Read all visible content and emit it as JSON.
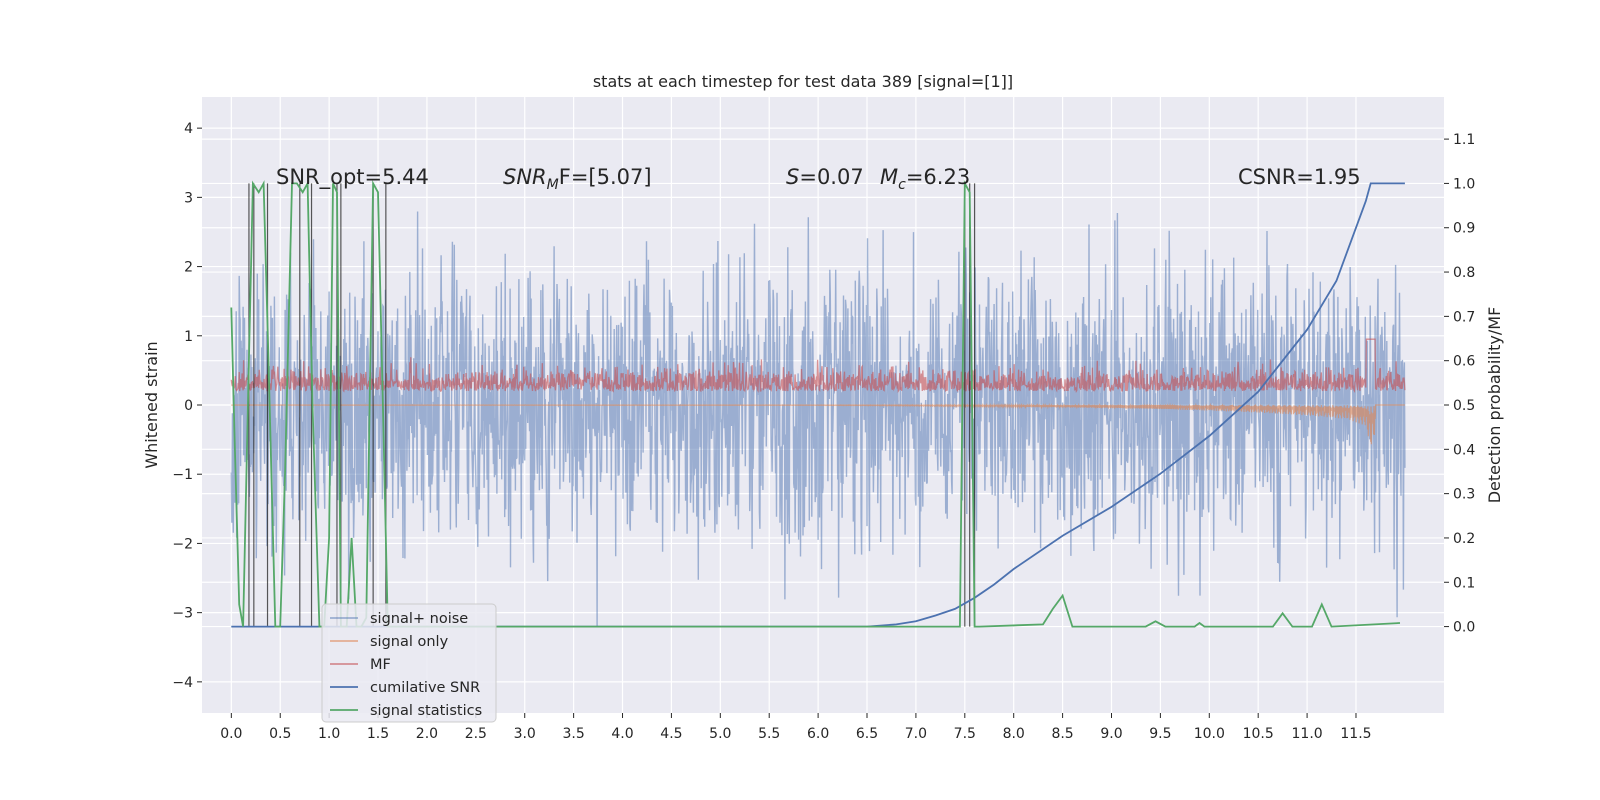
{
  "chart_data": {
    "type": "line",
    "title": "stats at each timestep for test data 389 [signal=[1]]",
    "ylabel": "Whitened strain",
    "ylabel_right": "Detection probability/MF",
    "xlim": [
      -0.3,
      12.4
    ],
    "ylim": [
      -4.45,
      4.45
    ],
    "ylim_right": [
      -0.195,
      1.195
    ],
    "xticks": [
      "0.0",
      "0.5",
      "1.0",
      "1.5",
      "2.0",
      "2.5",
      "3.0",
      "3.5",
      "4.0",
      "4.5",
      "5.0",
      "5.5",
      "6.0",
      "6.5",
      "7.0",
      "7.5",
      "8.0",
      "8.5",
      "9.0",
      "9.5",
      "10.0",
      "10.5",
      "11.0",
      "11.5"
    ],
    "yticks_left": [
      "−4",
      "−3",
      "−2",
      "−1",
      "0",
      "1",
      "2",
      "3",
      "4"
    ],
    "yticks_right": [
      "0.0",
      "0.1",
      "0.2",
      "0.3",
      "0.4",
      "0.5",
      "0.6",
      "0.7",
      "0.8",
      "0.9",
      "1.0",
      "1.1"
    ],
    "grid": true,
    "legend_position": "lower-left",
    "annotations": {
      "snr_opt": "SNR_opt=5.44",
      "snr_mf_label": "SNR",
      "snr_mf_sub": "M",
      "snr_mf_rest": "F=[5.07]",
      "s_label": "S",
      "s_rest": "=0.07",
      "mc_label": "M",
      "mc_sub": "c",
      "mc_rest": "=6.23",
      "csnr": "CSNR=1.95"
    },
    "series": [
      {
        "name": "signal+ noise",
        "color": "#4c72b0",
        "opacity": 0.5,
        "band_rms": 1.0,
        "x_range": [
          0,
          12.0
        ]
      },
      {
        "name": "signal only",
        "color": "#dd8452",
        "opacity": 0.6,
        "x": [
          0,
          6.0,
          7.0,
          8.0,
          9.0,
          10.0,
          10.5,
          11.0,
          11.4,
          11.6,
          11.65,
          11.7
        ],
        "amplitude": [
          0.002,
          0.005,
          0.012,
          0.025,
          0.045,
          0.08,
          0.11,
          0.15,
          0.2,
          0.3,
          0.62,
          0.4
        ]
      },
      {
        "name": "MF",
        "color": "#c44e52",
        "opacity": 0.6,
        "baseline": 0.25,
        "x_range": [
          0,
          12.0
        ]
      },
      {
        "name": "cumilative SNR",
        "color": "#4c72b0",
        "axis": "right",
        "x": [
          0.0,
          6.5,
          6.8,
          7.0,
          7.2,
          7.4,
          7.6,
          7.8,
          8.0,
          8.5,
          9.0,
          9.5,
          10.0,
          10.5,
          11.0,
          11.3,
          11.5,
          11.6,
          11.65,
          12.0
        ],
        "y": [
          0.0,
          0.0,
          0.005,
          0.012,
          0.025,
          0.04,
          0.065,
          0.095,
          0.13,
          0.205,
          0.27,
          0.345,
          0.43,
          0.53,
          0.67,
          0.78,
          0.9,
          0.96,
          1.0,
          1.0
        ]
      },
      {
        "name": "signal statistics",
        "color": "#55a868",
        "axis": "right",
        "x": [
          0.0,
          0.03,
          0.08,
          0.12,
          0.18,
          0.22,
          0.28,
          0.33,
          0.38,
          0.45,
          0.5,
          0.55,
          0.62,
          0.67,
          0.73,
          0.78,
          0.83,
          0.9,
          0.95,
          1.0,
          1.04,
          1.08,
          1.12,
          1.18,
          1.23,
          1.28,
          1.33,
          1.38,
          1.45,
          1.5,
          1.55,
          1.6,
          1.65,
          7.45,
          7.5,
          7.55,
          7.6,
          7.65,
          8.3,
          8.4,
          8.5,
          8.6,
          9.35,
          9.45,
          9.55,
          9.85,
          9.9,
          9.95,
          10.65,
          10.75,
          10.85,
          11.05,
          11.15,
          11.25,
          11.95
        ],
        "y": [
          0.72,
          0.45,
          0.05,
          0.0,
          0.6,
          1.0,
          0.98,
          1.0,
          0.6,
          0.0,
          0.0,
          0.35,
          1.0,
          1.0,
          0.98,
          1.0,
          0.5,
          0.0,
          0.0,
          0.2,
          1.0,
          0.98,
          0.0,
          0.0,
          0.2,
          0.0,
          0.0,
          0.02,
          1.0,
          0.98,
          0.5,
          0.0,
          0.0,
          0.0,
          1.0,
          0.98,
          0.0,
          0.0,
          0.005,
          0.04,
          0.07,
          0.0,
          0.0,
          0.012,
          0.0,
          0.0,
          0.008,
          0.0,
          0.0,
          0.03,
          0.0,
          0.0,
          0.05,
          0.0,
          0.008
        ]
      }
    ],
    "vlines": [
      0.18,
      0.23,
      0.37,
      0.7,
      0.82,
      1.08,
      1.12,
      1.45,
      1.58,
      7.5,
      7.55,
      7.6
    ]
  }
}
